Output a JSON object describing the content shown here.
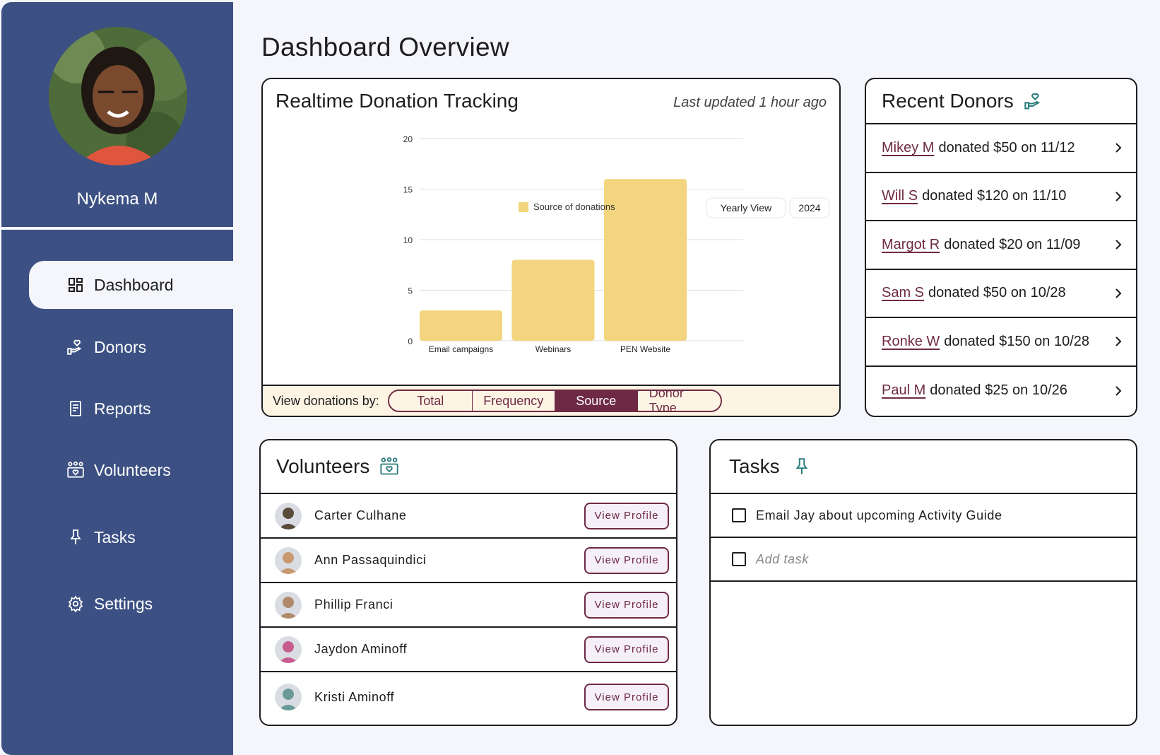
{
  "colors": {
    "sidebar": "#3c5083",
    "accent": "#6e2a44",
    "bar": "#f2d57e",
    "teal": "#2d7c7c"
  },
  "profile": {
    "name": "Nykema M"
  },
  "nav": [
    {
      "label": "Dashboard",
      "icon": "dashboard-icon",
      "active": true
    },
    {
      "label": "Donors",
      "icon": "hand-heart-icon"
    },
    {
      "label": "Reports",
      "icon": "report-icon"
    },
    {
      "label": "Volunteers",
      "icon": "volunteers-icon"
    },
    {
      "label": "Tasks",
      "icon": "pin-icon"
    },
    {
      "label": "Settings",
      "icon": "gear-icon"
    }
  ],
  "page_title": "Dashboard Overview",
  "donations": {
    "title": "Realtime Donation Tracking",
    "updated": "Last updated 1 hour ago",
    "view_label": "View donations by:",
    "segments": [
      "Total",
      "Frequency",
      "Source",
      "Donor Type"
    ],
    "active_segment": "Source",
    "chart_buttons": {
      "view": "Yearly View",
      "year": "2024"
    }
  },
  "chart_data": {
    "type": "bar",
    "categories": [
      "Email campaigns",
      "Webinars",
      "PEN Website"
    ],
    "series": [
      {
        "name": "Source of donations",
        "values": [
          3,
          8,
          16
        ]
      }
    ],
    "ylim": [
      0,
      20
    ],
    "yticks": [
      0,
      5,
      10,
      15,
      20
    ],
    "grid": true,
    "legend": "top"
  },
  "donors": {
    "title": "Recent Donors",
    "items": [
      {
        "name": "Mikey M",
        "rest": "donated $50 on 11/12"
      },
      {
        "name": "Will S",
        "rest": "donated $120 on 11/10"
      },
      {
        "name": "Margot R",
        "rest": "donated $20 on 11/09"
      },
      {
        "name": "Sam S",
        "rest": "donated $50 on 10/28"
      },
      {
        "name": "Ronke W",
        "rest": "donated $150 on 10/28"
      },
      {
        "name": "Paul M",
        "rest": "donated $25 on 10/26"
      }
    ]
  },
  "volunteers": {
    "title": "Volunteers",
    "button_label": "View Profile",
    "items": [
      {
        "name": "Carter Culhane",
        "avatar": "#5a4a3c"
      },
      {
        "name": "Ann Passaquindici",
        "avatar": "#c9986f"
      },
      {
        "name": "Phillip Franci",
        "avatar": "#b08a6a"
      },
      {
        "name": "Jaydon Aminoff",
        "avatar": "#c75c8e"
      },
      {
        "name": "Kristi Aminoff",
        "avatar": "#6a9a98"
      }
    ]
  },
  "tasks": {
    "title": "Tasks",
    "items": [
      "Email Jay about upcoming Activity Guide"
    ],
    "placeholder": "Add task"
  }
}
